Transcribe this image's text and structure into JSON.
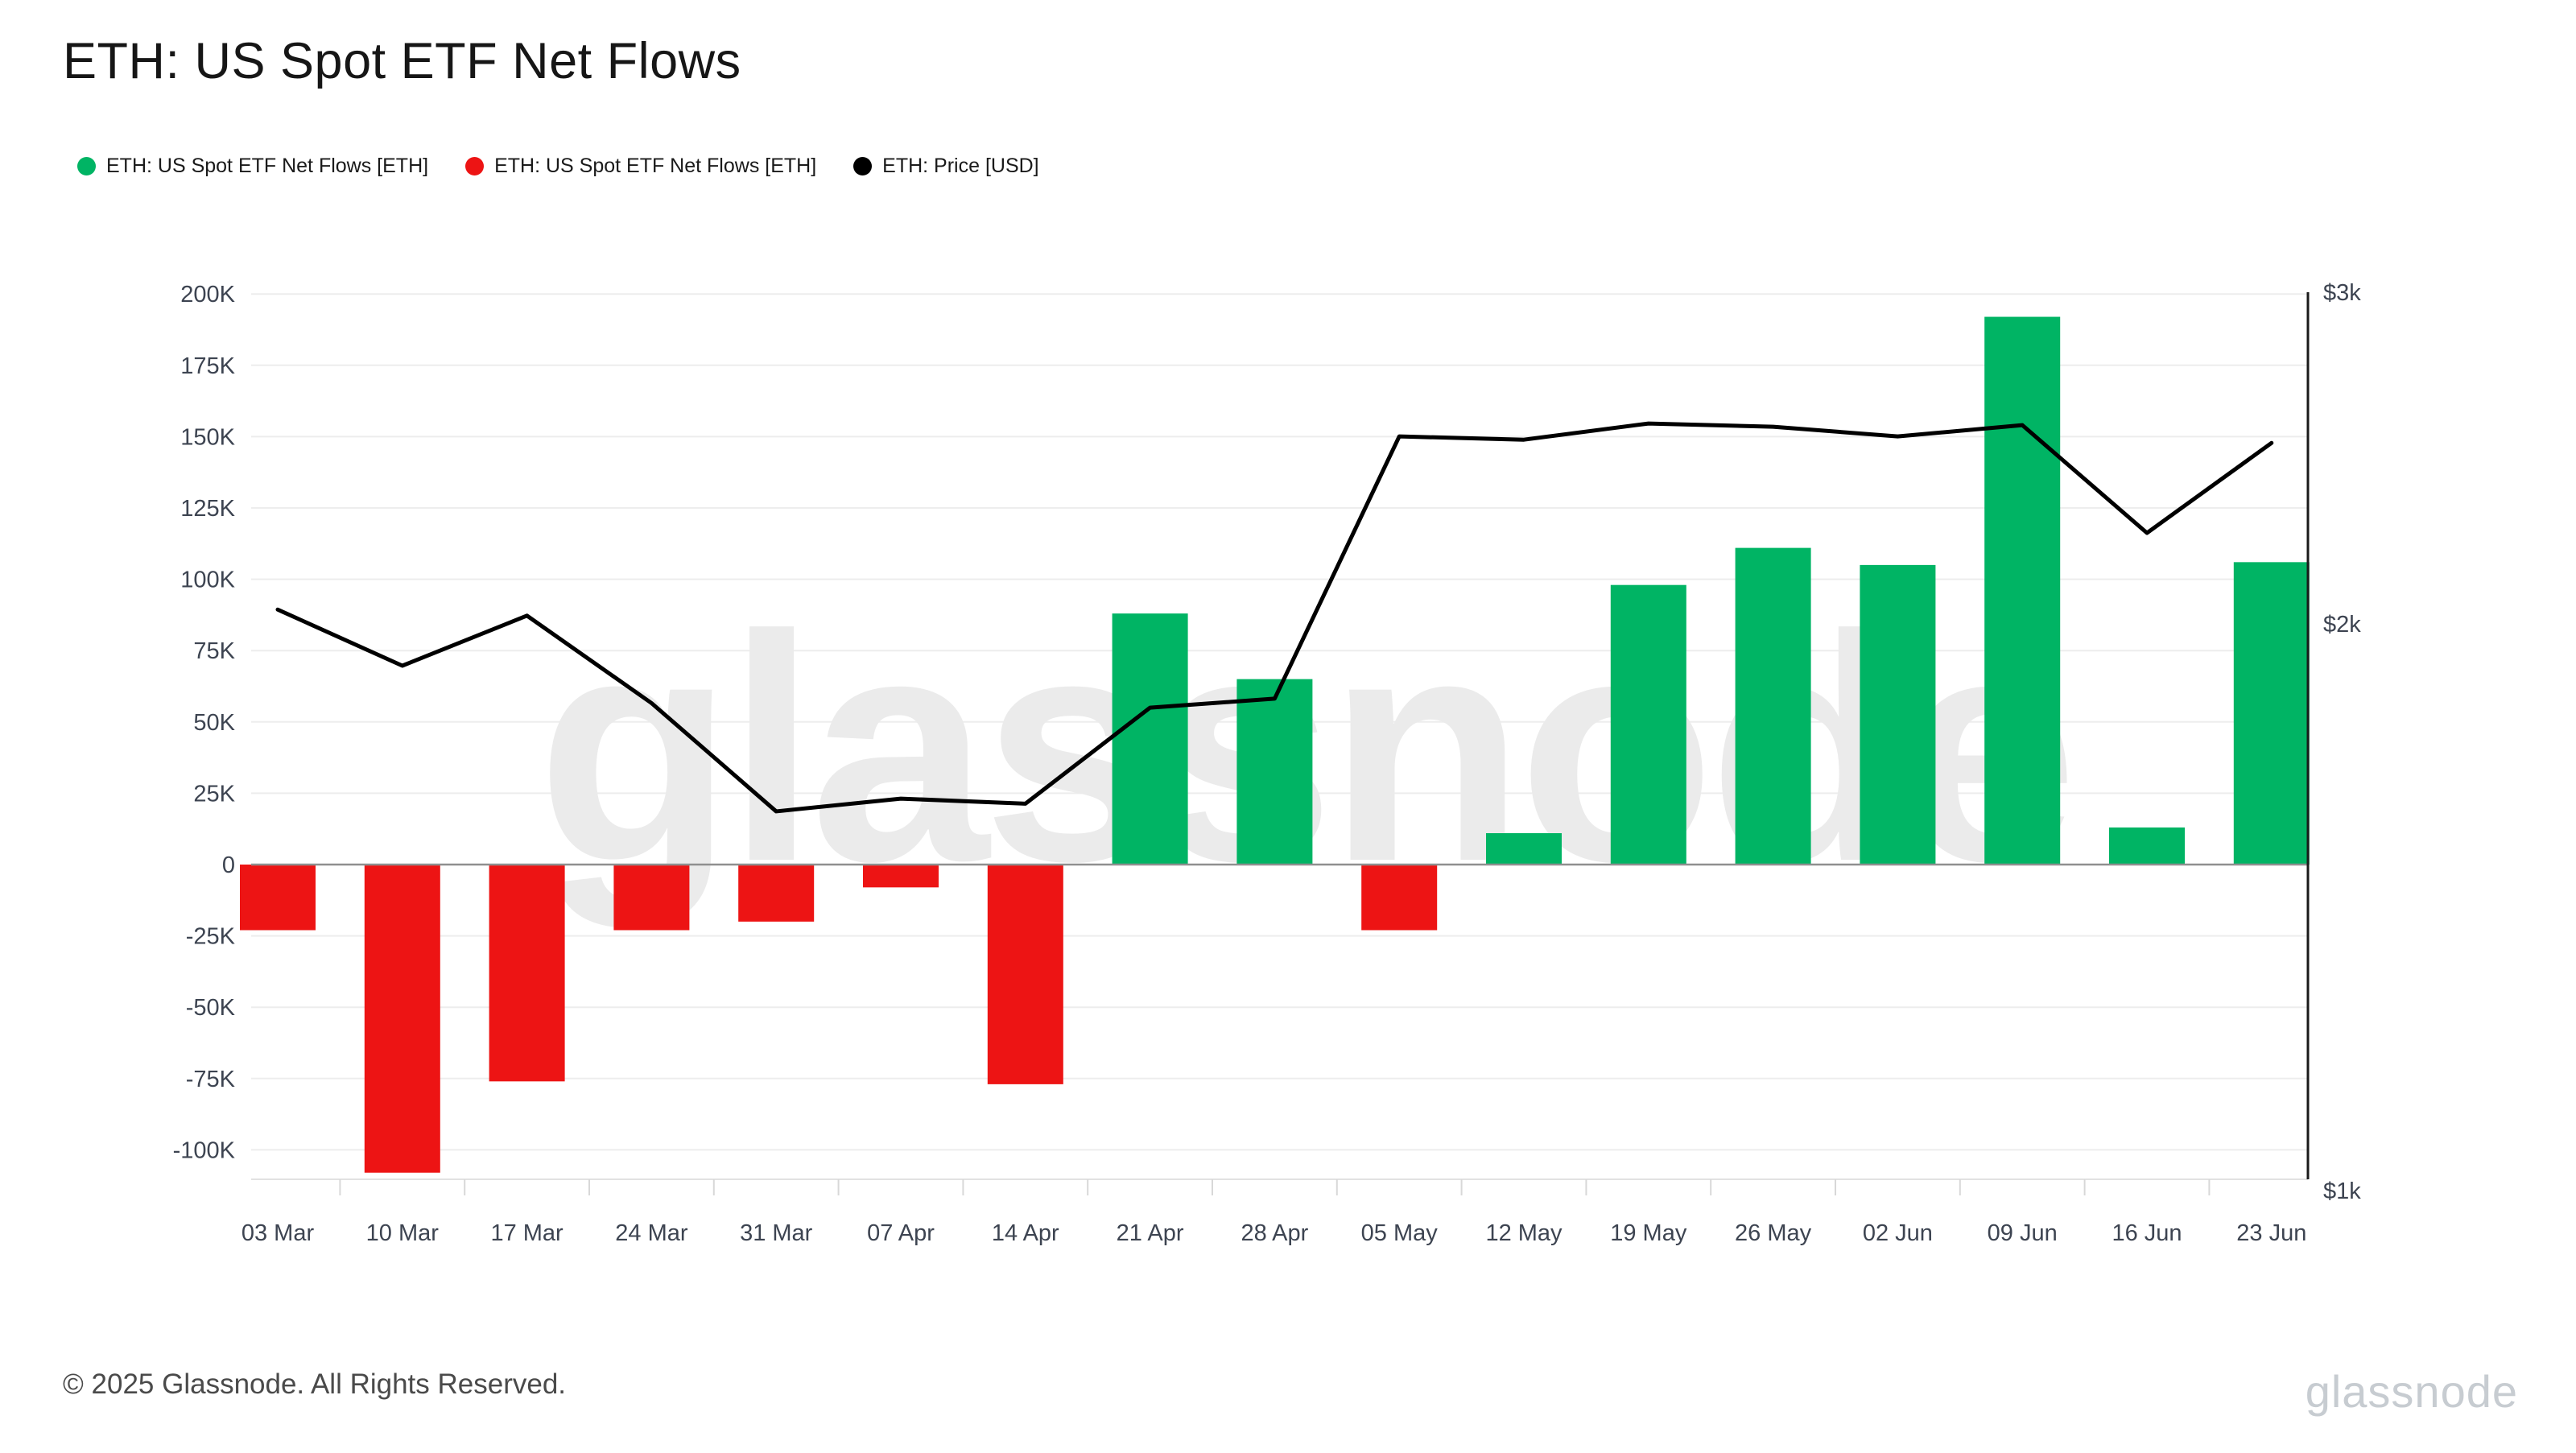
{
  "header": {
    "title": "ETH: US Spot ETF Net Flows",
    "legend": [
      {
        "name": "legend-net-flows-positive",
        "label": "ETH: US Spot ETF Net Flows [ETH]",
        "color": "#00B464"
      },
      {
        "name": "legend-net-flows-negative",
        "label": "ETH: US Spot ETF Net Flows [ETH]",
        "color": "#ED1414"
      },
      {
        "name": "legend-price",
        "label": "ETH: Price [USD]",
        "color": "#000000"
      }
    ]
  },
  "watermark": "glassnode",
  "footer": {
    "copyright": "© 2025 Glassnode. All Rights Reserved.",
    "brand": "glassnode"
  },
  "chart_data": {
    "type": "bar+line",
    "title": "ETH: US Spot ETF Net Flows",
    "categories": [
      "03 Mar",
      "10 Mar",
      "17 Mar",
      "24 Mar",
      "31 Mar",
      "07 Apr",
      "14 Apr",
      "21 Apr",
      "28 Apr",
      "05 May",
      "12 May",
      "19 May",
      "26 May",
      "02 Jun",
      "09 Jun",
      "16 Jun",
      "23 Jun"
    ],
    "series": [
      {
        "name": "ETH: US Spot ETF Net Flows [ETH]",
        "type": "bar",
        "unit": "ETH",
        "positive_color": "#00B464",
        "negative_color": "#ED1414",
        "values": [
          -23000,
          -108000,
          -76000,
          -23000,
          -20000,
          -8000,
          -77000,
          88000,
          65000,
          -23000,
          11000,
          98000,
          111000,
          105000,
          192000,
          13000,
          106000
        ]
      },
      {
        "name": "ETH: Price [USD]",
        "type": "line",
        "unit": "USD",
        "color": "#000000",
        "values": [
          2035,
          1900,
          2020,
          1815,
          1590,
          1615,
          1605,
          1805,
          1825,
          2515,
          2505,
          2555,
          2545,
          2515,
          2550,
          2235,
          2495
        ]
      }
    ],
    "left_axis": {
      "title": "",
      "scale": "linear",
      "range": [
        -115000,
        200000
      ],
      "ticks": [
        {
          "label": "200K",
          "value": 200000
        },
        {
          "label": "175K",
          "value": 175000
        },
        {
          "label": "150K",
          "value": 150000
        },
        {
          "label": "125K",
          "value": 125000
        },
        {
          "label": "100K",
          "value": 100000
        },
        {
          "label": "75K",
          "value": 75000
        },
        {
          "label": "50K",
          "value": 50000
        },
        {
          "label": "25K",
          "value": 25000
        },
        {
          "label": "0",
          "value": 0
        },
        {
          "label": "-25K",
          "value": -25000
        },
        {
          "label": "-50K",
          "value": -50000
        },
        {
          "label": "-75K",
          "value": -75000
        },
        {
          "label": "-100K",
          "value": -100000
        }
      ]
    },
    "right_axis": {
      "title": "",
      "scale": "log",
      "ticks": [
        {
          "label": "$3k",
          "value": 3000
        },
        {
          "label": "$2k",
          "value": 2000
        },
        {
          "label": "$1k",
          "value": 1000
        }
      ]
    },
    "grid": true,
    "legend_position": "top-left",
    "colors": {
      "grid_line": "#ededed",
      "zero_line": "#8f8f8f",
      "bottom_axis_line": "#e2e2e2",
      "axis_tick": "#d8d8d8",
      "right_axis_line": "#1a1a1a",
      "axis_label": "#3d4451",
      "watermark": "#ebebeb"
    }
  }
}
